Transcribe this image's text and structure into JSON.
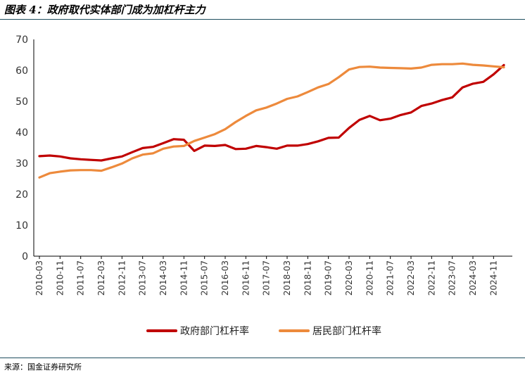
{
  "title": "图表 4：政府取代实体部门成为加杠杆主力",
  "source": "来源：国金证券研究所",
  "colors": {
    "gov": "#c00000",
    "household": "#ed8a3c",
    "rule": "#1f4e5f"
  },
  "chart_data": {
    "type": "line",
    "ylim": [
      0,
      70
    ],
    "yticks": [
      0,
      10,
      20,
      30,
      40,
      50,
      60,
      70
    ],
    "x": [
      "2010-03",
      "2010-07",
      "2010-11",
      "2011-03",
      "2011-07",
      "2011-11",
      "2012-03",
      "2012-07",
      "2012-11",
      "2013-03",
      "2013-07",
      "2013-11",
      "2014-03",
      "2014-07",
      "2014-11",
      "2015-03",
      "2015-07",
      "2015-11",
      "2016-03",
      "2016-07",
      "2016-11",
      "2017-03",
      "2017-07",
      "2017-11",
      "2018-03",
      "2018-07",
      "2018-11",
      "2019-03",
      "2019-07",
      "2019-11",
      "2020-03",
      "2020-07",
      "2020-11",
      "2021-03",
      "2021-07",
      "2021-11",
      "2022-03",
      "2022-07",
      "2022-11",
      "2023-03",
      "2023-07",
      "2023-11",
      "2024-03",
      "2024-07",
      "2024-11",
      "2025-03"
    ],
    "xtick_labels": [
      "2010-03",
      "2010-11",
      "2011-07",
      "2012-03",
      "2012-11",
      "2013-07",
      "2014-03",
      "2014-11",
      "2015-07",
      "2016-03",
      "2016-11",
      "2017-07",
      "2018-03",
      "2018-11",
      "2019-07",
      "2020-03",
      "2020-11",
      "2021-07",
      "2022-03",
      "2022-11",
      "2023-07",
      "2024-03",
      "2024-11"
    ],
    "legend_position": "bottom",
    "series": [
      {
        "name": "政府部门杠杆率",
        "color": "#c00000",
        "values": [
          32.3,
          32.5,
          32.2,
          31.6,
          31.3,
          31.1,
          30.9,
          31.6,
          32.2,
          33.6,
          34.9,
          35.3,
          36.5,
          37.8,
          37.6,
          34.0,
          35.7,
          35.6,
          35.9,
          34.6,
          34.7,
          35.6,
          35.2,
          34.7,
          35.7,
          35.7,
          36.2,
          37.1,
          38.2,
          38.3,
          41.4,
          44.0,
          45.3,
          43.9,
          44.4,
          45.6,
          46.4,
          48.5,
          49.3,
          50.4,
          51.3,
          54.5,
          55.7,
          56.3,
          58.7,
          61.7
        ]
      },
      {
        "name": "居民部门杠杆率",
        "color": "#ed8a3c",
        "values": [
          25.4,
          26.8,
          27.3,
          27.7,
          27.8,
          27.8,
          27.6,
          28.7,
          29.9,
          31.6,
          32.8,
          33.2,
          34.7,
          35.4,
          35.6,
          37.2,
          38.3,
          39.4,
          41.0,
          43.3,
          45.3,
          47.1,
          48.0,
          49.3,
          50.8,
          51.6,
          53.0,
          54.5,
          55.6,
          57.8,
          60.3,
          61.1,
          61.2,
          60.9,
          60.8,
          60.7,
          60.6,
          60.9,
          61.8,
          62.0,
          62.0,
          62.2,
          61.8,
          61.6,
          61.3,
          61.0
        ]
      }
    ]
  }
}
